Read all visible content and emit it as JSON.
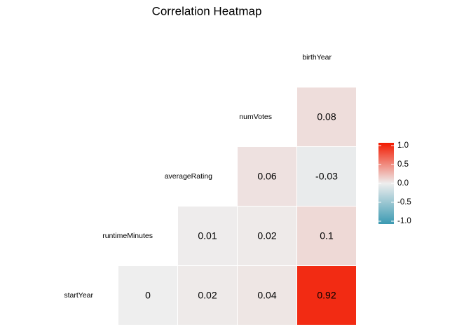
{
  "chart_data": {
    "type": "heatmap",
    "title": "Correlation Heatmap",
    "labels": [
      "startYear",
      "runtimeMinutes",
      "averageRating",
      "numVotes",
      "birthYear"
    ],
    "values": [
      [
        0,
        0.02,
        0.04,
        0.92
      ],
      [
        0.01,
        0.02,
        0.1
      ],
      [
        0.06,
        -0.03
      ],
      [
        0.08
      ]
    ],
    "colorscale": {
      "low": "#3B9AB2",
      "mid": "#EEEEEE",
      "high": "#F21A00"
    },
    "clim": [
      -1,
      1
    ],
    "cticks": [
      {
        "value": -1,
        "label": "-1.0"
      },
      {
        "value": -0.5,
        "label": "-0.5"
      },
      {
        "value": 0,
        "label": "0.0"
      },
      {
        "value": 0.5,
        "label": "0.5"
      },
      {
        "value": 1,
        "label": "1.0"
      }
    ]
  }
}
